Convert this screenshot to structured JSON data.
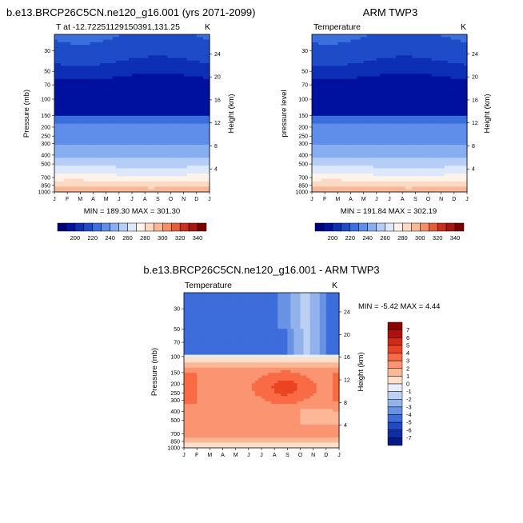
{
  "chart_data": [
    {
      "type": "heatmap",
      "title": "b.e13.BRCP26C5CN.ne120_g16.001 (yrs 2071-2099)",
      "subtitle": "T at -12.72251129150391,131.25",
      "unit": "K",
      "xlabel": "",
      "ylabel": "Pressure (mb)",
      "ylabel_right": "Height (km)",
      "x": [
        "J",
        "F",
        "M",
        "A",
        "M",
        "J",
        "J",
        "A",
        "S",
        "O",
        "N",
        "D",
        "J"
      ],
      "y_ticks": [
        "30",
        "50",
        "70",
        "100",
        "150",
        "200",
        "250",
        "300",
        "400",
        "500",
        "700",
        "850",
        "1000"
      ],
      "y_ticks_right": [
        "24",
        "20",
        "16",
        "12",
        "8",
        "4"
      ],
      "y_scale": "log",
      "ylim": [
        1000,
        20
      ],
      "stats_text": "MIN = 189.30 MAX = 301.30",
      "min": 189.3,
      "max": 301.3,
      "colorbar": {
        "labels": [
          "200",
          "220",
          "240",
          "260",
          "280",
          "300",
          "320",
          "340"
        ],
        "levels": [
          190,
          200,
          210,
          220,
          230,
          240,
          250,
          260,
          270,
          280,
          290,
          300,
          310,
          320,
          330,
          340,
          350
        ]
      }
    },
    {
      "type": "heatmap",
      "title": "ARM TWP3",
      "subtitle": "Temperature",
      "unit": "K",
      "xlabel": "",
      "ylabel": "pressure level",
      "ylabel_right": "Height (km)",
      "x": [
        "J",
        "F",
        "M",
        "A",
        "M",
        "J",
        "J",
        "A",
        "S",
        "O",
        "N",
        "D",
        "J"
      ],
      "y_ticks": [
        "30",
        "50",
        "70",
        "100",
        "150",
        "200",
        "250",
        "300",
        "400",
        "500",
        "700",
        "850",
        "1000"
      ],
      "y_ticks_right": [
        "24",
        "20",
        "16",
        "12",
        "8",
        "4"
      ],
      "y_scale": "log",
      "ylim": [
        1000,
        20
      ],
      "stats_text": "MIN = 191.84 MAX = 302.19",
      "min": 191.84,
      "max": 302.19,
      "colorbar": {
        "labels": [
          "200",
          "220",
          "240",
          "260",
          "280",
          "300",
          "320",
          "340"
        ],
        "levels": [
          190,
          200,
          210,
          220,
          230,
          240,
          250,
          260,
          270,
          280,
          290,
          300,
          310,
          320,
          330,
          340,
          350
        ]
      }
    },
    {
      "type": "heatmap",
      "title": "b.e13.BRCP26C5CN.ne120_g16.001 - ARM TWP3",
      "subtitle": "Temperature",
      "unit": "K",
      "xlabel": "",
      "ylabel": "Pressure (mb)",
      "ylabel_right": "Height (km)",
      "x": [
        "J",
        "F",
        "M",
        "A",
        "M",
        "J",
        "J",
        "A",
        "S",
        "O",
        "N",
        "D",
        "J"
      ],
      "y_ticks": [
        "30",
        "50",
        "70",
        "100",
        "150",
        "200",
        "250",
        "300",
        "400",
        "500",
        "700",
        "850",
        "1000"
      ],
      "y_ticks_right": [
        "24",
        "20",
        "16",
        "12",
        "8",
        "4"
      ],
      "y_scale": "log",
      "ylim": [
        1000,
        20
      ],
      "stats_text": "MIN =  -5.42 MAX =  4.44",
      "min": -5.42,
      "max": 4.44,
      "colorbar": {
        "labels": [
          "7",
          "6",
          "5",
          "4",
          "3",
          "2",
          "1",
          "0",
          "-1",
          "-2",
          "-3",
          "-4",
          "-5",
          "-6",
          "-7"
        ]
      }
    }
  ],
  "colors": {
    "temperature_fills": [
      "#00007f",
      "#00119e",
      "#0c2fb4",
      "#1e4cc8",
      "#3a6fdc",
      "#5e8eea",
      "#88aef2",
      "#b5cef7",
      "#dde9fb",
      "#fdf3ea",
      "#fbd9c3",
      "#f7b897",
      "#f28f68",
      "#e85c3c",
      "#cc2f1e",
      "#a5170f",
      "#7a0000"
    ],
    "difference_fills": [
      "#8b0000",
      "#b0100c",
      "#d42a14",
      "#ec4422",
      "#f96b44",
      "#fb9470",
      "#fcb896",
      "#fde0cc",
      "#e6eefb",
      "#bcd0f4",
      "#92b2ec",
      "#6892e3",
      "#3d6ddb",
      "#2149c5",
      "#0f2da4",
      "#061a86"
    ]
  }
}
